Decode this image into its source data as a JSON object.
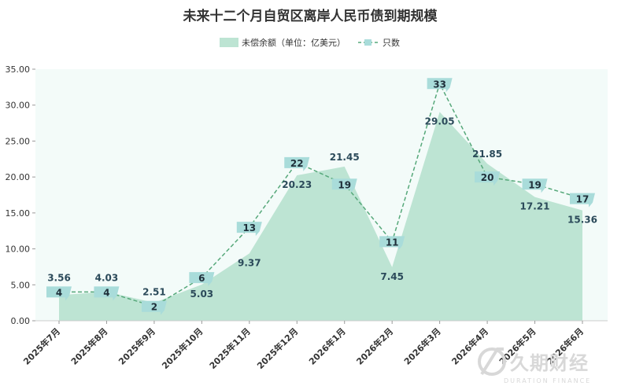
{
  "chart_data": {
    "type": "area+line",
    "title": "未来十二个月自贸区离岸人民币债到期规模",
    "categories": [
      "2025年7月",
      "2025年8月",
      "2025年9月",
      "2025年10月",
      "2025年11月",
      "2025年12月",
      "2026年1月",
      "2026年2月",
      "2026年3月",
      "2026年4月",
      "2026年5月",
      "2026年6月"
    ],
    "series": [
      {
        "name": "未偿余额（单位：亿美元）",
        "kind": "area",
        "values": [
          3.56,
          4.03,
          2.51,
          5.03,
          9.37,
          20.23,
          21.45,
          7.45,
          29.05,
          21.85,
          17.21,
          15.36
        ],
        "labels": [
          "3.56",
          "4.03",
          "2.51",
          "5.03",
          "9.37",
          "20.23",
          "21.45",
          "7.45",
          "29.05",
          "21.85",
          "17.21",
          "15.36"
        ]
      },
      {
        "name": "只数",
        "kind": "line-dashed",
        "values": [
          4,
          4,
          2,
          6,
          13,
          22,
          19,
          11,
          33,
          20,
          19,
          17
        ]
      }
    ],
    "ylim": [
      0,
      35
    ],
    "yticks": [
      "0.00",
      "5.00",
      "10.00",
      "15.00",
      "20.00",
      "25.00",
      "30.00",
      "35.00"
    ],
    "colors": {
      "area": "#bde4d3",
      "line": "#56a87a",
      "marker": "#a9dcda",
      "plot_bg": "#f3fbf9"
    }
  },
  "watermark": {
    "main": "久期财经",
    "sub": "DURATION FINANCE"
  }
}
